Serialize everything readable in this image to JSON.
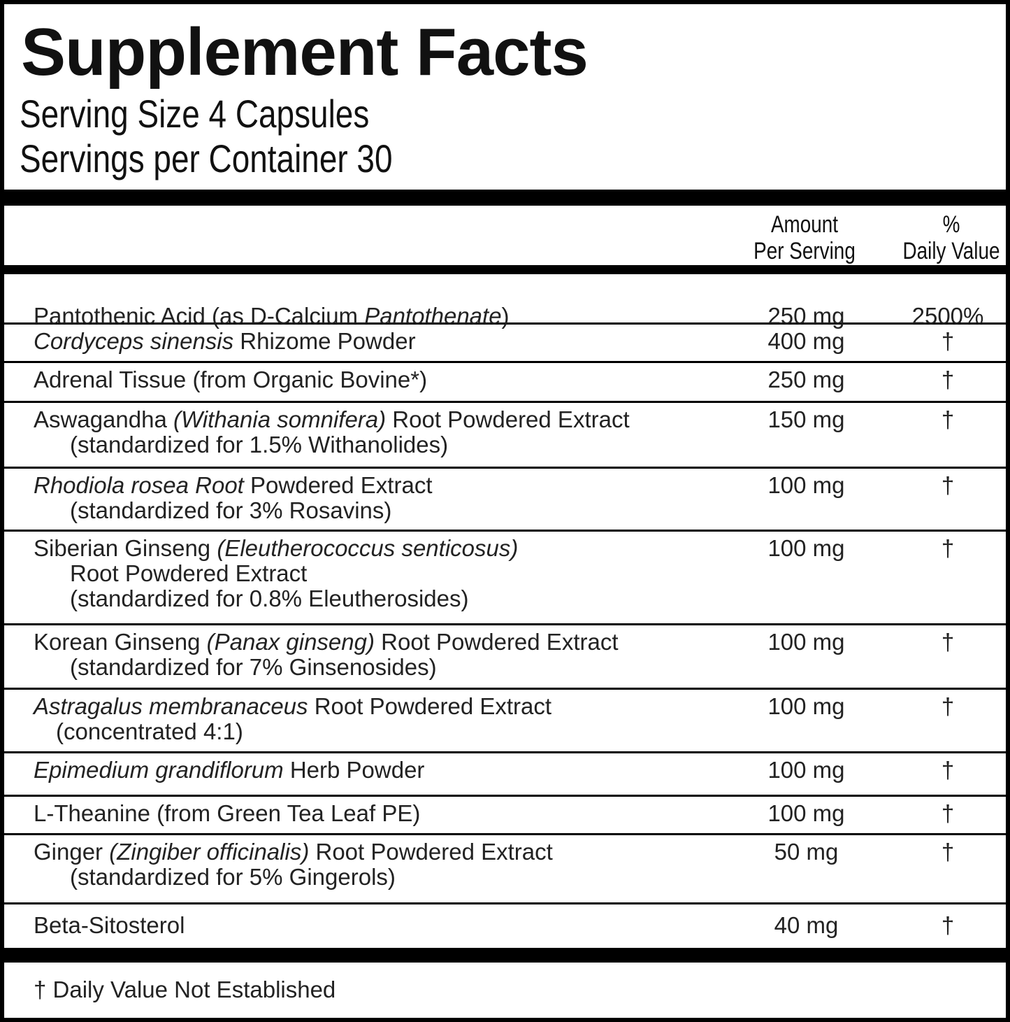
{
  "header": {
    "title": "Supplement Facts",
    "serving_size": "Serving Size 4 Capsules",
    "servings_per_container": "Servings per Container 30"
  },
  "columns": {
    "amount_line1": "Amount",
    "amount_line2": "Per Serving",
    "dv_line1": "%",
    "dv_line2": "Daily Value"
  },
  "rows": [
    {
      "name_parts": [
        [
          "Pantothenic Acid (as D-Calcium ",
          false
        ],
        [
          "Pantothenate",
          true
        ],
        [
          ")",
          false
        ]
      ],
      "amount": "250 mg",
      "dv": "2500%"
    },
    {
      "name_parts": [
        [
          "Cordyceps sinensis",
          true
        ],
        [
          " Rhizome Powder",
          false
        ]
      ],
      "amount": "400 mg",
      "dv": "†"
    },
    {
      "name_parts": [
        [
          "Adrenal Tissue (from Organic Bovine*)",
          false
        ]
      ],
      "amount": "250 mg",
      "dv": "†"
    },
    {
      "name_parts": [
        [
          "Aswagandha ",
          false
        ],
        [
          "(Withania somnifera)",
          true
        ],
        [
          " Root Powdered Extract",
          false
        ]
      ],
      "line2": "(standardized for 1.5% Withanolides)",
      "amount": "150 mg",
      "dv": "†"
    },
    {
      "name_parts": [
        [
          "Rhodiola rosea Root",
          true
        ],
        [
          " Powdered Extract",
          false
        ]
      ],
      "line2": "(standardized for 3% Rosavins)",
      "amount": "100 mg",
      "dv": "†"
    },
    {
      "name_parts": [
        [
          "Siberian Ginseng ",
          false
        ],
        [
          "(Eleutherococcus senticosus)",
          true
        ]
      ],
      "line2": "Root Powdered Extract",
      "line3": "(standardized for 0.8% Eleutherosides)",
      "amount": "100 mg",
      "dv": "†"
    },
    {
      "name_parts": [
        [
          "Korean Ginseng ",
          false
        ],
        [
          "(Panax ginseng)",
          true
        ],
        [
          " Root Powdered Extract",
          false
        ]
      ],
      "line2": "(standardized for 7% Ginsenosides)",
      "amount": "100 mg",
      "dv": "†"
    },
    {
      "name_parts": [
        [
          "Astragalus membranaceus",
          true
        ],
        [
          " Root Powdered Extract",
          false
        ]
      ],
      "line2": "(concentrated 4:1)",
      "amount": "100 mg",
      "dv": "†"
    },
    {
      "name_parts": [
        [
          "Epimedium grandiflorum",
          true
        ],
        [
          " Herb Powder",
          false
        ]
      ],
      "amount": "100 mg",
      "dv": "†"
    },
    {
      "name_parts": [
        [
          "L-Theanine (from Green Tea Leaf PE)",
          false
        ]
      ],
      "amount": "100 mg",
      "dv": "†"
    },
    {
      "name_parts": [
        [
          "Ginger ",
          false
        ],
        [
          "(Zingiber officinalis)",
          true
        ],
        [
          " Root Powdered Extract",
          false
        ]
      ],
      "line2": "(standardized for 5% Gingerols)",
      "amount": "50 mg",
      "dv": "†"
    },
    {
      "name_parts": [
        [
          "Beta-Sitosterol",
          false
        ]
      ],
      "amount": "40 mg",
      "dv": "†"
    }
  ],
  "footer": {
    "note": "† Daily Value Not Established"
  }
}
